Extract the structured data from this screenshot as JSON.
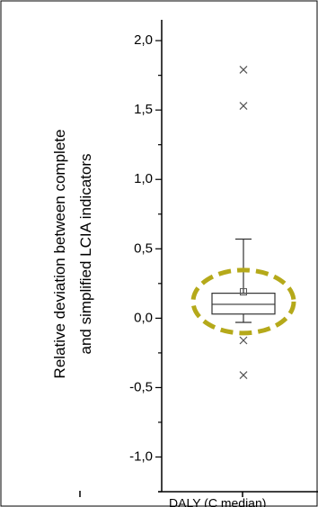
{
  "chart_data": {
    "type": "box",
    "ylabel_lines": [
      "Relative deviation between complete",
      "and simplified LCIA indicators"
    ],
    "categories": [
      "DALY (C median)"
    ],
    "ylim": [
      -1.25,
      2.15
    ],
    "y_ticks": [
      {
        "value": 2.0,
        "label": "2,0"
      },
      {
        "value": 1.5,
        "label": "1,5"
      },
      {
        "value": 1.0,
        "label": "1,0"
      },
      {
        "value": 0.5,
        "label": "0,5"
      },
      {
        "value": 0.0,
        "label": "0,0"
      },
      {
        "value": -0.5,
        "label": "-0,5"
      },
      {
        "value": -1.0,
        "label": "-1,0"
      }
    ],
    "minor_tick_step": 0.25,
    "box": {
      "q1": 0.03,
      "median": 0.1,
      "q3": 0.18,
      "mean": 0.19,
      "whisker_low": -0.03,
      "whisker_high": 0.57
    },
    "outliers": [
      1.79,
      1.53,
      -0.16,
      -0.41
    ],
    "highlight": {
      "shape": "dashed-ellipse",
      "color": "#b5a91a",
      "center": 0.12
    }
  }
}
